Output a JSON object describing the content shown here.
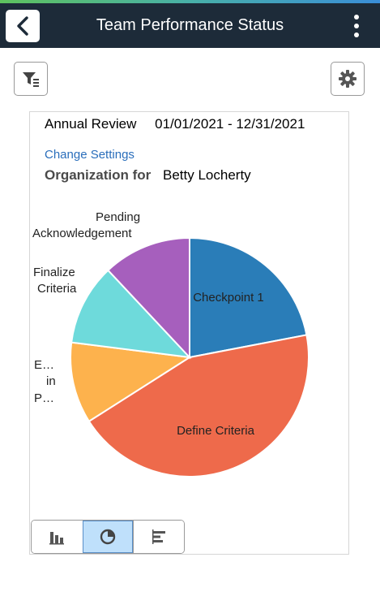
{
  "header": {
    "title": "Team Performance Status",
    "back_icon": "chevron-left-icon",
    "menu_icon": "kebab-menu-icon"
  },
  "toolbar": {
    "filter_icon": "filter-icon",
    "settings_icon": "gear-icon"
  },
  "card": {
    "review_label": "Annual Review",
    "review_period": "01/01/2021 - 12/31/2021",
    "change_settings": "Change Settings",
    "org_label": "Organization for",
    "org_name": "Betty Locherty"
  },
  "chart_data": {
    "type": "pie",
    "title": "",
    "slices": [
      {
        "label": "Checkpoint 1",
        "value": 22,
        "color": "#2a7db8"
      },
      {
        "label": "Define Criteria",
        "value": 44,
        "color": "#ee6a4b"
      },
      {
        "label": "E… in P…",
        "value": 11,
        "color": "#fdb24d"
      },
      {
        "label": "Finalize Criteria",
        "value": 11,
        "color": "#6edadb"
      },
      {
        "label": "Pending Acknowledgement",
        "value": 12,
        "color": "#a65fbd"
      }
    ]
  },
  "view_toggle": {
    "options": [
      {
        "icon": "bar-chart-icon",
        "selected": false
      },
      {
        "icon": "pie-chart-icon",
        "selected": true
      },
      {
        "icon": "horizontal-bar-chart-icon",
        "selected": false
      }
    ]
  },
  "colors": {
    "header_bg": "#1d2b39",
    "link": "#2a6ebb",
    "selected_toggle": "#bfe0fb"
  }
}
